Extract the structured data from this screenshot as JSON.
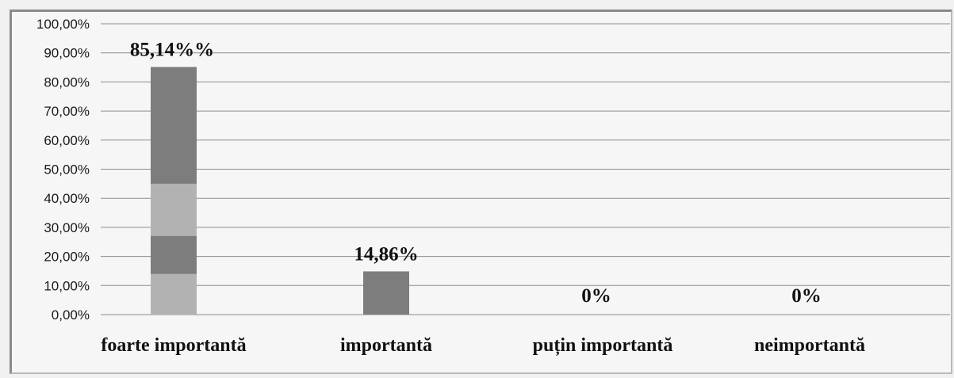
{
  "chart_data": {
    "type": "bar",
    "title": "",
    "xlabel": "",
    "ylabel": "",
    "categories": [
      "foarte importantă",
      "importantă",
      "puțin importantă",
      "neimportantă"
    ],
    "values": [
      85.14,
      14.86,
      0,
      0
    ],
    "data_labels": [
      "85,14%%",
      "14,86%",
      "0%",
      "0%"
    ],
    "ylim": [
      0,
      100
    ],
    "y_ticks": [
      "0,00%",
      "10,00%",
      "20,00%",
      "30,00%",
      "40,00%",
      "50,00%",
      "60,00%",
      "70,00%",
      "80,00%",
      "90,00%",
      "100,00%"
    ],
    "grid": true,
    "legend": "none",
    "colors": {
      "bar": "#7d7d7d",
      "bar_light": "#b2b2b2",
      "grid": "#8c8c8c",
      "background": "#f6f6f6"
    }
  }
}
